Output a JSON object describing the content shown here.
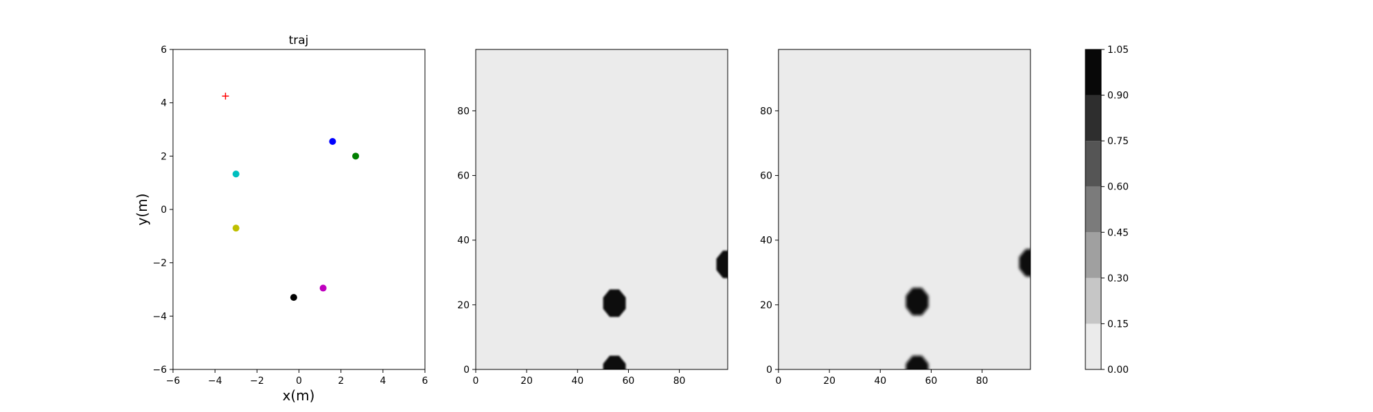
{
  "chart_data": [
    {
      "type": "scatter",
      "title": "traj",
      "xlabel": "x(m)",
      "ylabel": "y(m)",
      "xlim": [
        -6,
        6
      ],
      "ylim": [
        -6,
        6
      ],
      "xticks": [
        "−6",
        "−4",
        "−2",
        "0",
        "2",
        "4",
        "6"
      ],
      "yticks": [
        "−6",
        "−4",
        "−2",
        "0",
        "2",
        "4",
        "6"
      ],
      "points": [
        {
          "x": 1.6,
          "y": 2.55,
          "color": "#0000ff",
          "marker": "circle"
        },
        {
          "x": 2.7,
          "y": 2.0,
          "color": "#008000",
          "marker": "circle"
        },
        {
          "x": -3.0,
          "y": 1.33,
          "color": "#00bfbf",
          "marker": "circle"
        },
        {
          "x": -3.0,
          "y": -0.7,
          "color": "#bfbf00",
          "marker": "circle"
        },
        {
          "x": 1.15,
          "y": -2.95,
          "color": "#bf00bf",
          "marker": "circle"
        },
        {
          "x": -0.25,
          "y": -3.3,
          "color": "#000000",
          "marker": "circle"
        },
        {
          "x": -3.5,
          "y": 4.25,
          "color": "#ff0000",
          "marker": "plus"
        }
      ],
      "grid": false
    },
    {
      "type": "heatmap",
      "xlim": [
        0,
        99
      ],
      "ylim": [
        0,
        99
      ],
      "xticks": [
        "0",
        "20",
        "40",
        "60",
        "80"
      ],
      "yticks": [
        "0",
        "20",
        "40",
        "60",
        "80"
      ],
      "background_value": 0.0,
      "blobs": [
        {
          "x": 54.5,
          "y": 20.5,
          "value": 1.0
        },
        {
          "x": 54.5,
          "y": 0,
          "value": 1.0
        },
        {
          "x": 99,
          "y": 32.5,
          "value": 1.0
        }
      ]
    },
    {
      "type": "heatmap",
      "xlim": [
        0,
        99
      ],
      "ylim": [
        0,
        99
      ],
      "xticks": [
        "0",
        "20",
        "40",
        "60",
        "80"
      ],
      "yticks": [
        "0",
        "20",
        "40",
        "60",
        "80"
      ],
      "background_value": 0.0,
      "blobs": [
        {
          "x": 54.5,
          "y": 21,
          "value": 1.0
        },
        {
          "x": 54.5,
          "y": 0,
          "value": 0.9
        },
        {
          "x": 99,
          "y": 33,
          "value": 0.95
        }
      ]
    }
  ],
  "colorbar": {
    "range": [
      0,
      1.05
    ],
    "levels": [
      0.0,
      0.15,
      0.3,
      0.45,
      0.6,
      0.75,
      0.9,
      1.05
    ],
    "tick_labels": [
      "0.00",
      "0.15",
      "0.30",
      "0.45",
      "0.60",
      "0.75",
      "0.90",
      "1.05"
    ],
    "colors": [
      "#ebebeb",
      "#c6c6c6",
      "#a0a0a0",
      "#7b7b7b",
      "#555555",
      "#2e2e2e",
      "#080808"
    ]
  }
}
